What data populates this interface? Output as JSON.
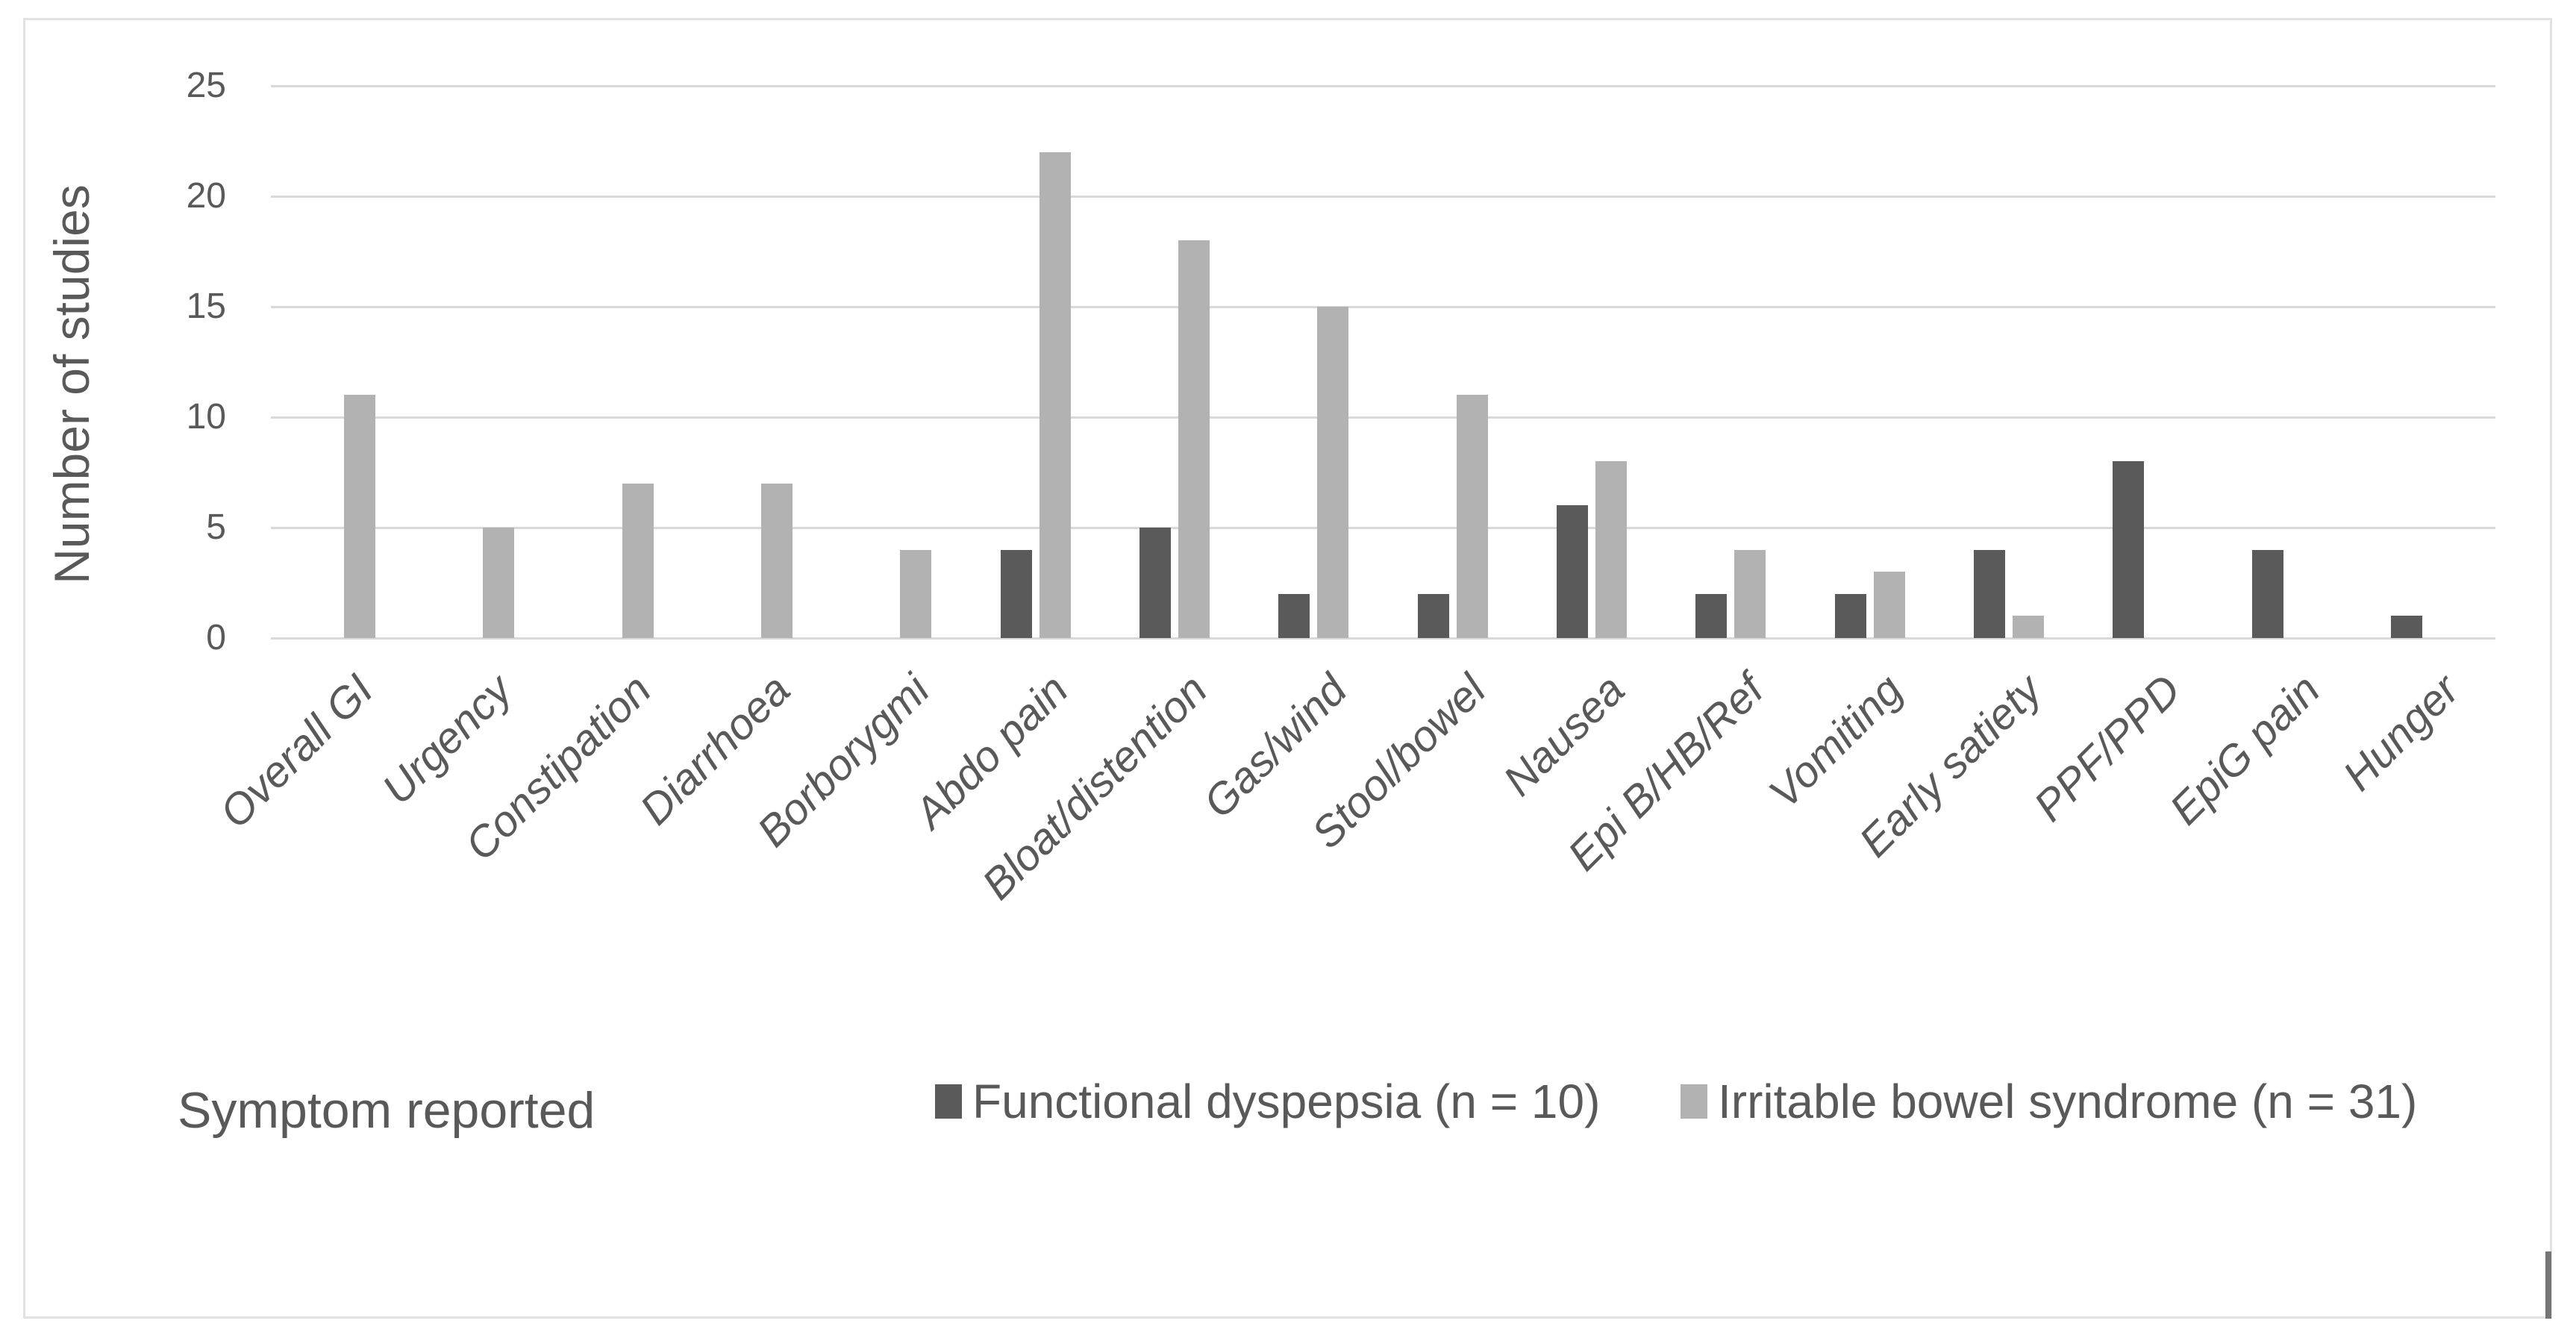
{
  "window": {
    "background": "#ffffff",
    "border_color": "#e2e2e2",
    "handle_color": "#757575"
  },
  "chart_data": {
    "type": "bar",
    "title": "",
    "xlabel": "Symptom reported",
    "ylabel": "Number of studies",
    "ylim": [
      0,
      25
    ],
    "yticks": [
      0,
      5,
      10,
      15,
      20,
      25
    ],
    "grid": "horizontal",
    "gridline_color": "#d9d9d9",
    "axis_text_color": "#595959",
    "legend_position": "bottom",
    "categories": [
      "Overall GI",
      "Urgency",
      "Constipation",
      "Diarrhoea",
      "Borborygmi",
      "Abdo pain",
      "Bloat/distention",
      "Gas/wind",
      "Stool/bowel",
      "Nausea",
      "Epi B/HB/Ref",
      "Vomiting",
      "Early satiety",
      "PPF/PPD",
      "EpiG pain",
      "Hunger"
    ],
    "series": [
      {
        "name": "Functional dyspepsia (n = 10)",
        "color": "#5a5a5a",
        "values": [
          0,
          0,
          0,
          0,
          0,
          4,
          5,
          2,
          2,
          6,
          2,
          2,
          4,
          8,
          4,
          1
        ]
      },
      {
        "name": "Irritable bowel syndrome (n = 31)",
        "color": "#b2b2b2",
        "values": [
          11,
          5,
          7,
          7,
          4,
          22,
          18,
          15,
          11,
          8,
          4,
          3,
          1,
          0,
          0,
          0
        ]
      }
    ]
  }
}
